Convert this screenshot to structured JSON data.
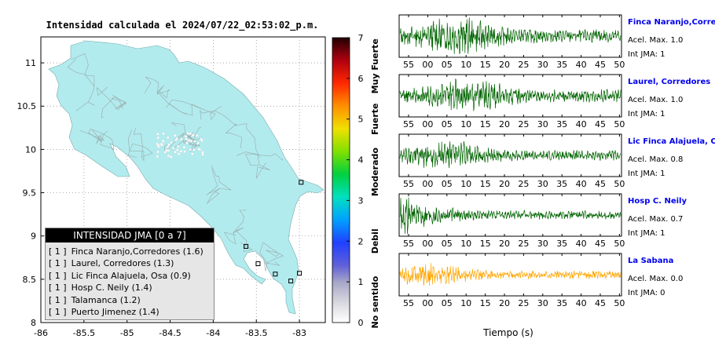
{
  "map": {
    "title": "Intensidad calculada el 2024/07/22_02:53:02_p.m.",
    "x_ticks": [
      "-86",
      "-85.5",
      "-85",
      "-84.5",
      "-84",
      "-83.5",
      "-83"
    ],
    "y_ticks": [
      "11",
      "10.5",
      "10",
      "9.5",
      "9",
      "8.5",
      "8"
    ],
    "xlim": [
      -86,
      -82.7
    ],
    "ylim": [
      8,
      11.3
    ],
    "fill_color": "#b2ebee",
    "stations_marked": [
      {
        "lon": -82.98,
        "lat": 9.62
      },
      {
        "lon": -83.62,
        "lat": 8.88
      },
      {
        "lon": -83.48,
        "lat": 8.68
      },
      {
        "lon": -83.28,
        "lat": 8.56
      },
      {
        "lon": -83.0,
        "lat": 8.57
      },
      {
        "lon": -83.1,
        "lat": 8.48
      }
    ]
  },
  "legend": {
    "title": "INTENSIDAD JMA [0 a 7]",
    "items": [
      {
        "level": "[ 1 ]",
        "name": "Finca Naranjo,Corredores (1.6)"
      },
      {
        "level": "[ 1 ]",
        "name": "Laurel, Corredores (1.3)"
      },
      {
        "level": "[ 1 ]",
        "name": "Lic Finca Alajuela, Osa (0.9)"
      },
      {
        "level": "[ 1 ]",
        "name": "Hosp C. Neily (1.4)"
      },
      {
        "level": "[ 1 ]",
        "name": "Talamanca (1.2)"
      },
      {
        "level": "[ 1 ]",
        "name": "Puerto Jimenez (1.4)"
      }
    ]
  },
  "colorbar": {
    "ticks": [
      "0",
      "1",
      "2",
      "3",
      "4",
      "5",
      "6",
      "7"
    ],
    "category_labels": [
      "No sentido",
      "Debil",
      "Moderado",
      "Fuerte",
      "Muy Fuerte"
    ],
    "colors": [
      "#ffffff",
      "#b0b0c8",
      "#2050ff",
      "#00c8ff",
      "#00d060",
      "#b0e000",
      "#ffd000",
      "#ff8000",
      "#ff2000",
      "#c00000",
      "#300000"
    ]
  },
  "chart_data": {
    "type": "line",
    "xlabel": "Tiempo (s)",
    "x_tick_labels": [
      "55",
      "00",
      "05",
      "10",
      "15",
      "20",
      "25",
      "30",
      "35",
      "40",
      "45",
      "50"
    ],
    "series": [
      {
        "name": "Finca Naranjo,Corredores",
        "acel_label": "Acel. Max. 1.0",
        "jma_label": "Int JMA: 1",
        "color": "#006400",
        "name_color": "#0000ee",
        "amp": 0.9,
        "burst": 0.25
      },
      {
        "name": "Laurel, Corredores",
        "acel_label": "Acel. Max. 1.0",
        "jma_label": "Int JMA: 1",
        "color": "#006400",
        "name_color": "#0000ee",
        "amp": 0.85,
        "burst": 0.3
      },
      {
        "name": "Lic Finca Alajuela, Osa",
        "acel_label": "Acel. Max. 0.8",
        "jma_label": "Int JMA: 1",
        "color": "#006400",
        "name_color": "#0000ee",
        "amp": 0.7,
        "burst": 0.22
      },
      {
        "name": "Hosp C. Neily",
        "acel_label": "Acel. Max. 0.7",
        "jma_label": "Int JMA: 1",
        "color": "#006400",
        "name_color": "#0000ee",
        "amp": 0.6,
        "burst": 0.05
      },
      {
        "name": "La Sabana",
        "acel_label": "Acel. Max. 0.0",
        "jma_label": "Int JMA: 0",
        "color": "#ffa500",
        "name_color": "#0000ee",
        "amp": 0.55,
        "burst": 0.12
      }
    ]
  }
}
